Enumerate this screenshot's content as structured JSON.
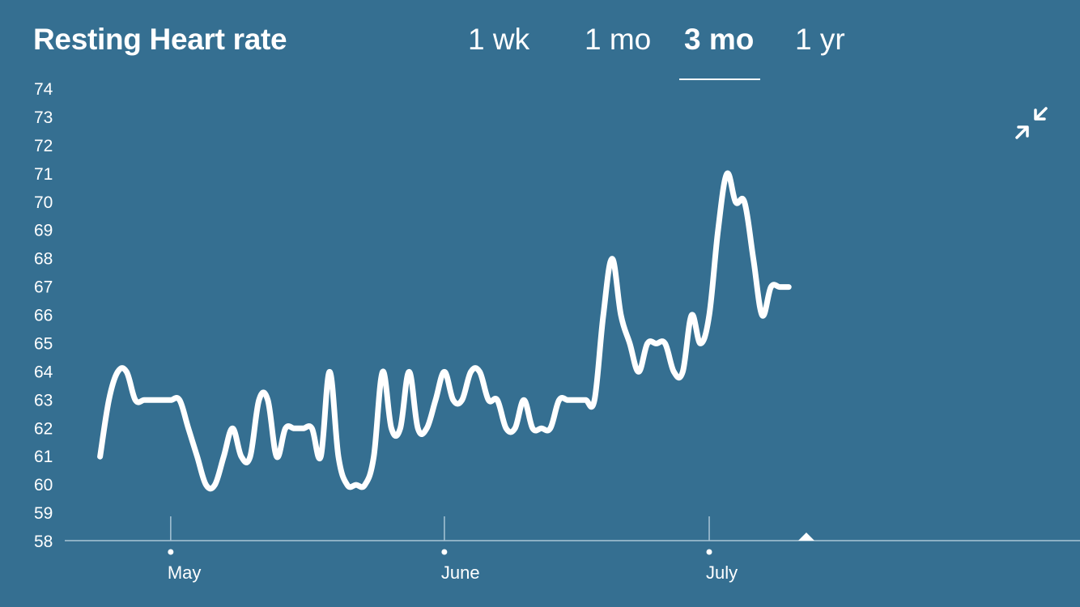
{
  "header": {
    "title": "Resting Heart rate",
    "tabs": [
      {
        "label": "1 wk",
        "active": false
      },
      {
        "label": "1 mo",
        "active": false
      },
      {
        "label": "3 mo",
        "active": true
      },
      {
        "label": "1 yr",
        "active": false
      }
    ]
  },
  "icons": {
    "collapse": "collapse-arrows-icon"
  },
  "colors": {
    "background": "#356f91",
    "line": "#ffffff"
  },
  "chart_data": {
    "type": "line",
    "title": "Resting Heart rate",
    "xlabel": "",
    "ylabel": "",
    "ylim": [
      58,
      74
    ],
    "yticks": [
      58,
      59,
      60,
      61,
      62,
      63,
      64,
      65,
      66,
      67,
      68,
      69,
      70,
      71,
      72,
      73,
      74
    ],
    "x_axis": "date",
    "x_range": [
      "2019-04-19",
      "2019-08-12"
    ],
    "x_month_ticks": [
      {
        "label": "May",
        "date": "2019-05-01"
      },
      {
        "label": "June",
        "date": "2019-06-01"
      },
      {
        "label": "July",
        "date": "2019-07-01"
      }
    ],
    "selected_marker_date": "2019-07-12",
    "grid": false,
    "series": [
      {
        "points": [
          [
            "2019-04-23",
            61
          ],
          [
            "2019-04-24",
            63
          ],
          [
            "2019-04-25",
            64
          ],
          [
            "2019-04-26",
            64
          ],
          [
            "2019-04-27",
            63
          ],
          [
            "2019-04-28",
            63
          ],
          [
            "2019-04-29",
            63
          ],
          [
            "2019-04-30",
            63
          ],
          [
            "2019-05-01",
            63
          ],
          [
            "2019-05-02",
            63
          ],
          [
            "2019-05-03",
            62
          ],
          [
            "2019-05-04",
            61
          ],
          [
            "2019-05-05",
            60
          ],
          [
            "2019-05-06",
            60
          ],
          [
            "2019-05-07",
            61
          ],
          [
            "2019-05-08",
            62
          ],
          [
            "2019-05-09",
            61
          ],
          [
            "2019-05-10",
            61
          ],
          [
            "2019-05-11",
            63
          ],
          [
            "2019-05-12",
            63
          ],
          [
            "2019-05-13",
            61
          ],
          [
            "2019-05-14",
            62
          ],
          [
            "2019-05-15",
            62
          ],
          [
            "2019-05-16",
            62
          ],
          [
            "2019-05-17",
            62
          ],
          [
            "2019-05-18",
            61
          ],
          [
            "2019-05-19",
            64
          ],
          [
            "2019-05-20",
            61
          ],
          [
            "2019-05-21",
            60
          ],
          [
            "2019-05-22",
            60
          ],
          [
            "2019-05-23",
            60
          ],
          [
            "2019-05-24",
            61
          ],
          [
            "2019-05-25",
            64
          ],
          [
            "2019-05-26",
            62
          ],
          [
            "2019-05-27",
            62
          ],
          [
            "2019-05-28",
            64
          ],
          [
            "2019-05-29",
            62
          ],
          [
            "2019-05-30",
            62
          ],
          [
            "2019-05-31",
            63
          ],
          [
            "2019-06-01",
            64
          ],
          [
            "2019-06-02",
            63
          ],
          [
            "2019-06-03",
            63
          ],
          [
            "2019-06-04",
            64
          ],
          [
            "2019-06-05",
            64
          ],
          [
            "2019-06-06",
            63
          ],
          [
            "2019-06-07",
            63
          ],
          [
            "2019-06-08",
            62
          ],
          [
            "2019-06-09",
            62
          ],
          [
            "2019-06-10",
            63
          ],
          [
            "2019-06-11",
            62
          ],
          [
            "2019-06-12",
            62
          ],
          [
            "2019-06-13",
            62
          ],
          [
            "2019-06-14",
            63
          ],
          [
            "2019-06-15",
            63
          ],
          [
            "2019-06-16",
            63
          ],
          [
            "2019-06-17",
            63
          ],
          [
            "2019-06-18",
            63
          ],
          [
            "2019-06-19",
            66
          ],
          [
            "2019-06-20",
            68
          ],
          [
            "2019-06-21",
            66
          ],
          [
            "2019-06-22",
            65
          ],
          [
            "2019-06-23",
            64
          ],
          [
            "2019-06-24",
            65
          ],
          [
            "2019-06-25",
            65
          ],
          [
            "2019-06-26",
            65
          ],
          [
            "2019-06-27",
            64
          ],
          [
            "2019-06-28",
            64
          ],
          [
            "2019-06-29",
            66
          ],
          [
            "2019-06-30",
            65
          ],
          [
            "2019-07-01",
            66
          ],
          [
            "2019-07-02",
            69
          ],
          [
            "2019-07-03",
            71
          ],
          [
            "2019-07-04",
            70
          ],
          [
            "2019-07-05",
            70
          ],
          [
            "2019-07-06",
            68
          ],
          [
            "2019-07-07",
            66
          ],
          [
            "2019-07-08",
            67
          ],
          [
            "2019-07-09",
            67
          ],
          [
            "2019-07-10",
            67
          ]
        ]
      }
    ]
  }
}
